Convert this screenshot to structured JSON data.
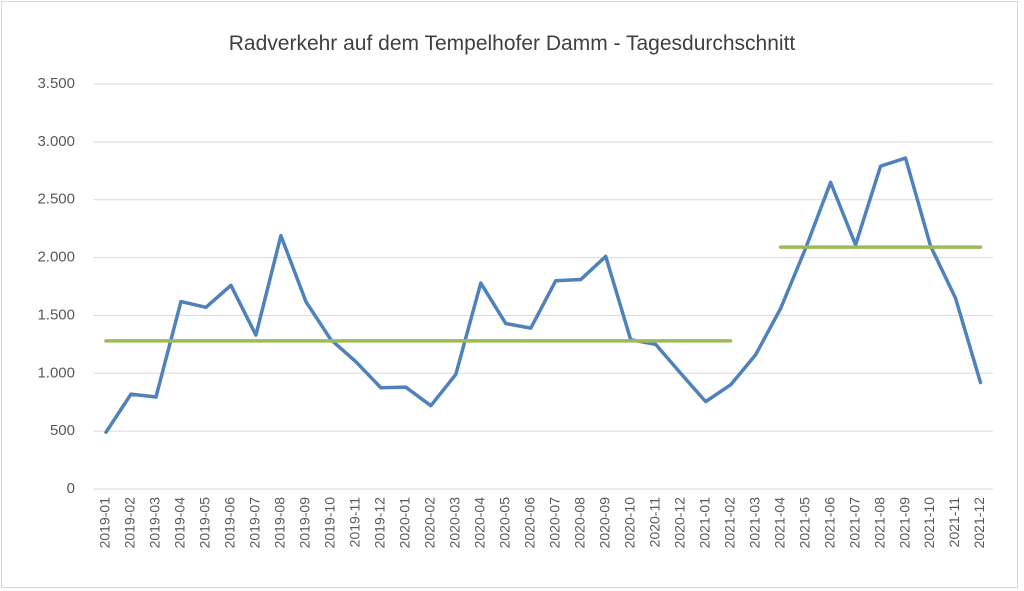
{
  "chart_data": {
    "type": "line",
    "title": "Radverkehr auf dem Tempelhofer Damm - Tagesdurchschnitt",
    "categories": [
      "2019-01",
      "2019-02",
      "2019-03",
      "2019-04",
      "2019-05",
      "2019-06",
      "2019-07",
      "2019-08",
      "2019-09",
      "2019-10",
      "2019-11",
      "2019-12",
      "2020-01",
      "2020-02",
      "2020-03",
      "2020-04",
      "2020-05",
      "2020-06",
      "2020-07",
      "2020-08",
      "2020-09",
      "2020-10",
      "2020-11",
      "2020-12",
      "2021-01",
      "2021-02",
      "2021-03",
      "2021-04",
      "2021-05",
      "2021-06",
      "2021-07",
      "2021-08",
      "2021-09",
      "2021-10",
      "2021-11",
      "2021-12"
    ],
    "series": [
      {
        "color": "#4f81bd",
        "values": [
          490,
          820,
          795,
          1620,
          1570,
          1760,
          1330,
          2190,
          1620,
          1290,
          1100,
          875,
          880,
          720,
          990,
          1780,
          1430,
          1390,
          1800,
          1810,
          2010,
          1290,
          1250,
          1000,
          755,
          900,
          1160,
          1560,
          2080,
          2650,
          2110,
          2790,
          2860,
          2100,
          1650,
          920
        ]
      },
      {
        "color": "#9bbb59",
        "values": [
          1280,
          1280,
          1280,
          1280,
          1280,
          1280,
          1280,
          1280,
          1280,
          1280,
          1280,
          1280,
          1280,
          1280,
          1280,
          1280,
          1280,
          1280,
          1280,
          1280,
          1280,
          1280,
          1280,
          1280,
          1280,
          1280,
          null,
          2090,
          2090,
          2090,
          2090,
          2090,
          2090,
          2090,
          2090,
          2090
        ]
      }
    ],
    "ylim": [
      0,
      3500
    ],
    "yticks": [
      0,
      500,
      {
        "value": 1000,
        "label": "1.000"
      },
      {
        "value": 1500,
        "label": "1.500"
      },
      {
        "value": 2000,
        "label": "2.000"
      },
      {
        "value": 2500,
        "label": "2.500"
      },
      {
        "value": 3000,
        "label": "3.000"
      },
      {
        "value": 3500,
        "label": "3.500"
      }
    ],
    "grid": true
  }
}
